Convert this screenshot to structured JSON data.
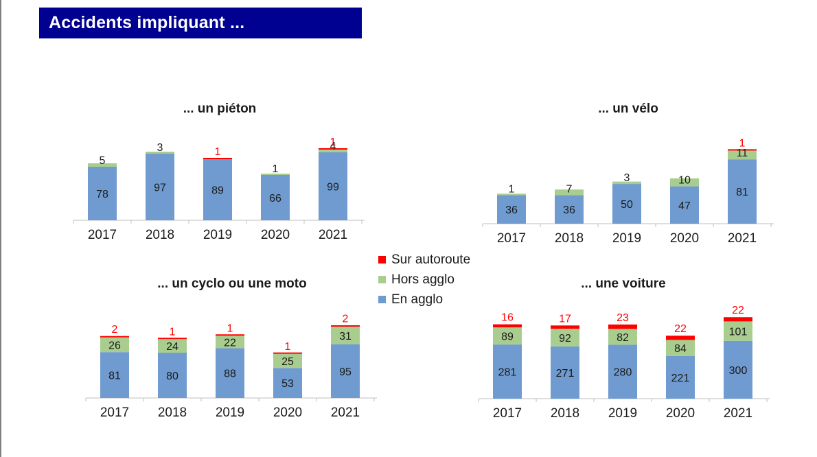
{
  "header": {
    "title": "Accidents impliquant ..."
  },
  "colors": {
    "en_agglo": "#6f9bd0",
    "hors_agglo": "#a9cd8f",
    "sur_autoroute": "#ff0000",
    "banner": "#000091"
  },
  "legend": {
    "items": [
      {
        "label": "Sur autoroute",
        "color": "#ff0000"
      },
      {
        "label": "Hors agglo",
        "color": "#a9cd8f"
      },
      {
        "label": "En agglo",
        "color": "#6f9bd0"
      }
    ]
  },
  "chart_data": [
    {
      "type": "bar",
      "stacked": true,
      "title": "... un piéton",
      "categories": [
        "2017",
        "2018",
        "2019",
        "2020",
        "2021"
      ],
      "series": [
        {
          "name": "En agglo",
          "values": [
            78,
            97,
            89,
            66,
            99
          ]
        },
        {
          "name": "Hors agglo",
          "values": [
            5,
            3,
            0,
            1,
            4
          ]
        },
        {
          "name": "Sur autoroute",
          "values": [
            0,
            0,
            1,
            0,
            1
          ]
        }
      ],
      "ylim": [
        0,
        130
      ]
    },
    {
      "type": "bar",
      "stacked": true,
      "title": "... un vélo",
      "categories": [
        "2017",
        "2018",
        "2019",
        "2020",
        "2021"
      ],
      "series": [
        {
          "name": "En agglo",
          "values": [
            36,
            36,
            50,
            47,
            81
          ]
        },
        {
          "name": "Hors agglo",
          "values": [
            1,
            7,
            3,
            10,
            11
          ]
        },
        {
          "name": "Sur autoroute",
          "values": [
            0,
            0,
            0,
            0,
            1
          ]
        }
      ],
      "ylim": [
        0,
        120
      ]
    },
    {
      "type": "bar",
      "stacked": true,
      "title": "... un cyclo ou une moto",
      "categories": [
        "2017",
        "2018",
        "2019",
        "2020",
        "2021"
      ],
      "series": [
        {
          "name": "En agglo",
          "values": [
            81,
            80,
            88,
            53,
            95
          ]
        },
        {
          "name": "Hors agglo",
          "values": [
            26,
            24,
            22,
            25,
            31
          ]
        },
        {
          "name": "Sur autoroute",
          "values": [
            2,
            1,
            1,
            1,
            2
          ]
        }
      ],
      "ylim": [
        0,
        160
      ]
    },
    {
      "type": "bar",
      "stacked": true,
      "title": "... une voiture",
      "categories": [
        "2017",
        "2018",
        "2019",
        "2020",
        "2021"
      ],
      "series": [
        {
          "name": "En agglo",
          "values": [
            281,
            271,
            280,
            221,
            300
          ]
        },
        {
          "name": "Hors agglo",
          "values": [
            89,
            92,
            82,
            84,
            101
          ]
        },
        {
          "name": "Sur autoroute",
          "values": [
            16,
            17,
            23,
            22,
            22
          ]
        }
      ],
      "ylim": [
        0,
        520
      ]
    }
  ]
}
